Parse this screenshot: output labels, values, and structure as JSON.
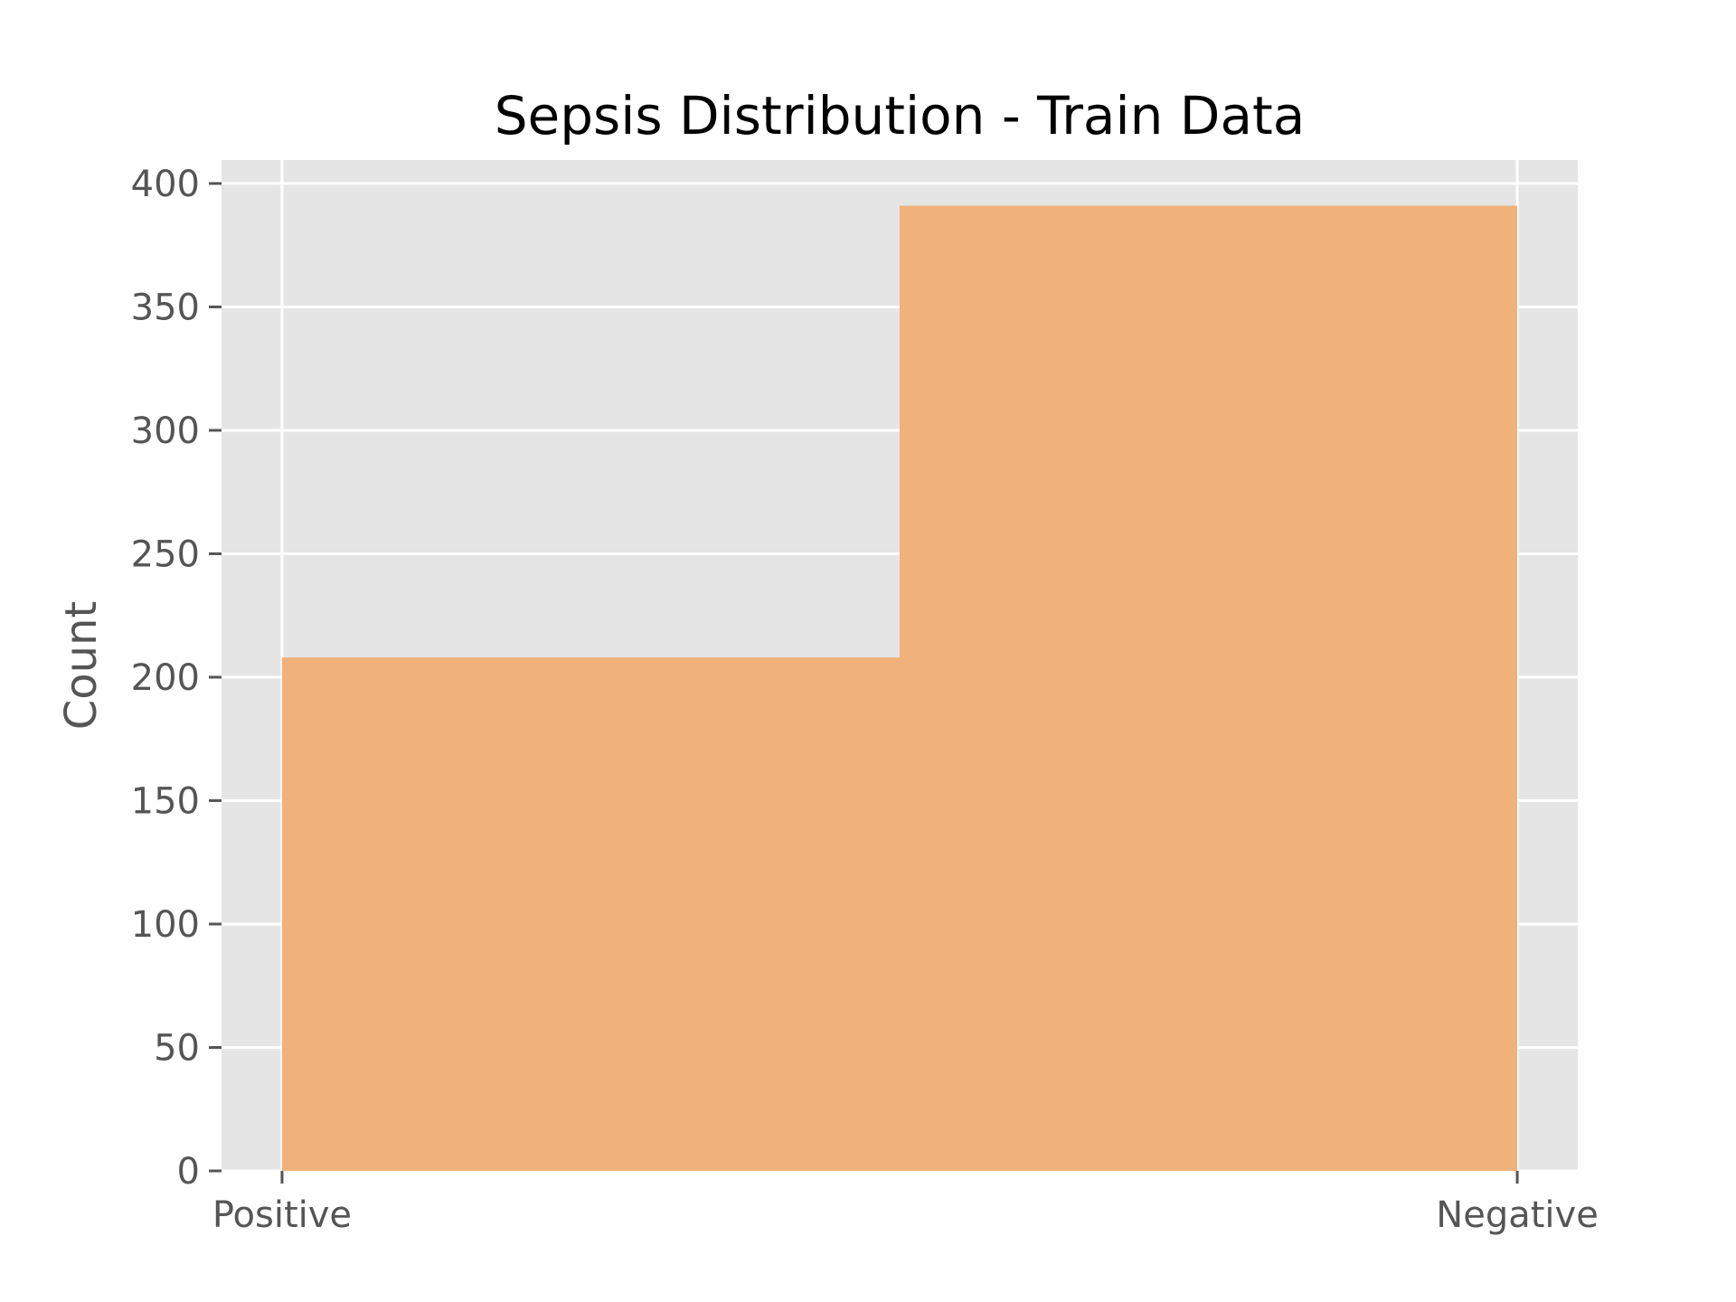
{
  "chart_data": {
    "type": "bar",
    "title": "Sepsis Distribution - Train Data",
    "xlabel": "",
    "ylabel": "Count",
    "categories": [
      "Positive",
      "Negative"
    ],
    "bins": [
      {
        "start": 0,
        "end": 0.5,
        "value": 208
      },
      {
        "start": 0.5,
        "end": 1,
        "value": 391
      }
    ],
    "x_ticks": [
      {
        "pos": 0,
        "label": "Positive"
      },
      {
        "pos": 1,
        "label": "Negative"
      }
    ],
    "xlim": [
      -0.049,
      1.049
    ],
    "ylim": [
      0,
      409.5
    ],
    "yticks": [
      0,
      50,
      100,
      150,
      200,
      250,
      300,
      350,
      400
    ],
    "grid": true,
    "colors": {
      "bar": "#f0b27a",
      "background": "#e5e5e5",
      "grid": "#ffffff",
      "tick": "#555555"
    }
  }
}
